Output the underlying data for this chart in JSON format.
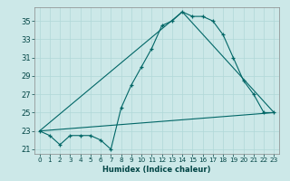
{
  "xlabel": "Humidex (Indice chaleur)",
  "ylabel": "",
  "bg_color": "#cce8e8",
  "line_color": "#006666",
  "xlim": [
    -0.5,
    23.5
  ],
  "ylim": [
    20.5,
    36.5
  ],
  "yticks": [
    21,
    23,
    25,
    27,
    29,
    31,
    33,
    35
  ],
  "xticks": [
    0,
    1,
    2,
    3,
    4,
    5,
    6,
    7,
    8,
    9,
    10,
    11,
    12,
    13,
    14,
    15,
    16,
    17,
    18,
    19,
    20,
    21,
    22,
    23
  ],
  "series1_x": [
    0,
    1,
    2,
    3,
    4,
    5,
    6,
    7,
    8,
    9,
    10,
    11,
    12,
    13,
    14,
    15,
    16,
    17,
    18,
    19,
    20,
    21,
    22,
    23
  ],
  "series1_y": [
    23.0,
    22.5,
    21.5,
    22.5,
    22.5,
    22.5,
    22.0,
    21.0,
    25.5,
    28.0,
    30.0,
    32.0,
    34.5,
    35.0,
    36.0,
    35.5,
    35.5,
    35.0,
    33.5,
    31.0,
    28.5,
    27.0,
    25.0,
    25.0
  ],
  "series2_x": [
    0,
    23
  ],
  "series2_y": [
    23.0,
    25.0
  ],
  "series3_x": [
    0,
    14,
    23
  ],
  "series3_y": [
    23.0,
    36.0,
    25.0
  ],
  "grid_color": "#b0d8d8",
  "tick_color": "#004444",
  "xlabel_fontsize": 6.0,
  "ytick_fontsize": 6.0,
  "xtick_fontsize": 5.2
}
